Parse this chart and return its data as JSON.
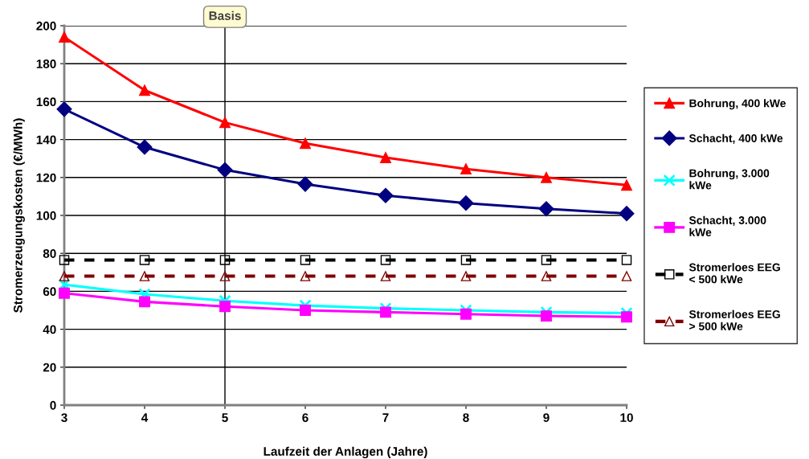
{
  "chart_data": {
    "type": "line",
    "xlabel": "Laufzeit der Anlagen (Jahre)",
    "ylabel": "Stromerzeugungskosten (€/MWh)",
    "x": [
      3,
      4,
      5,
      6,
      7,
      8,
      9,
      10
    ],
    "xlim": [
      3,
      10
    ],
    "xticks": [
      3,
      4,
      5,
      6,
      7,
      8,
      9,
      10
    ],
    "ylim": [
      0,
      200
    ],
    "yticks": [
      0,
      20,
      40,
      60,
      80,
      100,
      120,
      140,
      160,
      180,
      200
    ],
    "grid": "y",
    "legend": "right",
    "ref_lines": [
      {
        "axis": "x",
        "value": 5,
        "label": "Basis",
        "color": "#000000"
      }
    ],
    "series": [
      {
        "name": "Bohrung, 400 kWe",
        "color": "#ff0000",
        "marker": "triangle",
        "line_style": "solid",
        "values": [
          194,
          166,
          149,
          138,
          130.5,
          124.5,
          120,
          116
        ]
      },
      {
        "name": "Schacht, 400 kWe",
        "color": "#000080",
        "marker": "diamond",
        "line_style": "solid",
        "values": [
          156,
          136,
          124,
          116.5,
          110.5,
          106.5,
          103.5,
          101
        ]
      },
      {
        "name": "Bohrung, 3.000 kWe",
        "color": "#00ffff",
        "marker": "cross",
        "line_style": "solid",
        "values": [
          63.5,
          58.5,
          55,
          52.5,
          51,
          50,
          49,
          48.5
        ]
      },
      {
        "name": "Schacht, 3.000 kWe",
        "color": "#ff00ff",
        "marker": "square",
        "line_style": "solid",
        "values": [
          59,
          54.5,
          52,
          50,
          49,
          48,
          47,
          46.5
        ]
      },
      {
        "name": "Stromerloes EEG < 500 kWe",
        "color": "#000000",
        "marker": "square",
        "line_style": "dashed",
        "values": [
          76.5,
          76.5,
          76.5,
          76.5,
          76.5,
          76.5,
          76.5,
          76.5
        ]
      },
      {
        "name": "Stromerloes EEG > 500 kWe",
        "color": "#800000",
        "marker": "triangle",
        "line_style": "dashed",
        "values": [
          68,
          68,
          68,
          68,
          68,
          68,
          68,
          68
        ]
      }
    ]
  }
}
